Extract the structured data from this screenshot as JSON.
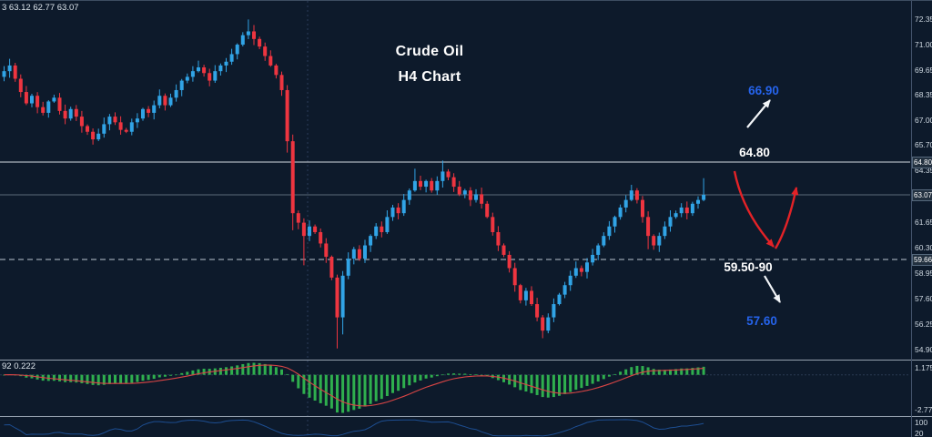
{
  "readouts": {
    "ohlc": "3 63.12 62.77 63.07",
    "macd_values": "92 0.222"
  },
  "annotations": {
    "title_line1": "Crude Oil",
    "title_line2": "H4 Chart",
    "target_up_label": "66.90",
    "resistance_label": "64.80",
    "support_zone_label": "59.50-90",
    "target_down_label": "57.60"
  },
  "axis": {
    "price_ticks": [
      {
        "label": "72.35",
        "price": 72.35
      },
      {
        "label": "71.00",
        "price": 71.0
      },
      {
        "label": "69.65",
        "price": 69.65
      },
      {
        "label": "68.35",
        "price": 68.35
      },
      {
        "label": "67.00",
        "price": 67.0
      },
      {
        "label": "65.70",
        "price": 65.7
      },
      {
        "label": "64.35",
        "price": 64.35
      },
      {
        "label": "61.65",
        "price": 61.65
      },
      {
        "label": "60.30",
        "price": 60.3
      },
      {
        "label": "58.95",
        "price": 58.95
      },
      {
        "label": "57.60",
        "price": 57.6
      },
      {
        "label": "56.25",
        "price": 56.25
      },
      {
        "label": "54.90",
        "price": 54.9
      }
    ],
    "badges": [
      {
        "label": "64.80",
        "price": 64.8
      },
      {
        "label": "63.07",
        "price": 63.07
      },
      {
        "label": "59.66",
        "price": 59.66
      }
    ]
  },
  "chart_data": {
    "type": "candlestick",
    "title": "Crude Oil H4 Chart",
    "instrument": "Crude Oil",
    "timeframe": "H4",
    "price_axis_range": [
      54.9,
      72.35
    ],
    "levels": {
      "resistance_line": 64.8,
      "current_price_line": 63.07,
      "support_dashed_line": 59.66,
      "support_zone_text": "59.50-90",
      "upside_target": 66.9,
      "downside_target": 57.6
    },
    "candles": {
      "first_open": 69.3,
      "closes": [
        69.6,
        69.9,
        69.2,
        68.5,
        67.9,
        68.3,
        67.7,
        67.4,
        68.0,
        68.2,
        67.5,
        67.1,
        67.6,
        67.2,
        66.7,
        66.4,
        66.0,
        66.3,
        66.8,
        67.2,
        66.9,
        66.5,
        66.4,
        66.9,
        67.1,
        67.6,
        67.4,
        67.8,
        68.3,
        67.8,
        68.2,
        68.6,
        69.1,
        69.3,
        69.6,
        69.8,
        69.5,
        69.1,
        69.6,
        69.9,
        70.1,
        70.5,
        71.0,
        71.5,
        71.7,
        71.3,
        70.9,
        70.4,
        69.9,
        69.4,
        68.6,
        65.9,
        62.1,
        61.6,
        60.9,
        61.4,
        61.1,
        60.5,
        59.8,
        58.7,
        56.6,
        58.8,
        59.7,
        60.2,
        59.7,
        60.4,
        60.9,
        61.4,
        61.1,
        61.9,
        62.4,
        62.1,
        62.8,
        63.3,
        63.8,
        63.5,
        63.8,
        63.3,
        63.8,
        64.3,
        64.0,
        63.5,
        63.1,
        63.3,
        62.8,
        63.1,
        62.6,
        61.9,
        61.1,
        60.4,
        59.9,
        59.2,
        58.3,
        57.5,
        58.0,
        57.3,
        56.6,
        55.9,
        56.6,
        57.3,
        57.8,
        58.3,
        58.8,
        59.2,
        59.0,
        59.5,
        59.9,
        60.4,
        60.9,
        61.4,
        61.9,
        62.4,
        62.8,
        63.3,
        62.8,
        61.9,
        60.9,
        60.4,
        60.9,
        61.4,
        61.9,
        62.1,
        62.4,
        62.1,
        62.6,
        62.8,
        63.07
      ],
      "wick_overrides": {
        "44": {
          "h": 72.33
        },
        "51": {
          "l": 65.3
        },
        "52": {
          "l": 61.2
        },
        "54": {
          "l": 59.35
        },
        "60": {
          "l": 54.96
        },
        "61": {
          "l": 55.7
        },
        "74": {
          "h": 64.45
        },
        "79": {
          "h": 64.88
        },
        "97": {
          "l": 55.5
        },
        "113": {
          "h": 63.6
        },
        "116": {
          "l": 60.2
        },
        "126": {
          "h": 63.95
        }
      }
    },
    "indicators": {
      "macd": {
        "visible_values": "92 0.222",
        "scale_max_label": "1.175",
        "scale_min_label": "-2.776"
      },
      "lower_panel": {
        "scale_labels": [
          "100",
          "20"
        ]
      }
    }
  },
  "colors": {
    "background": "#0d1a2b",
    "bull": "#31a4e6",
    "bear": "#ee3540",
    "panel_border": "#94a0ae",
    "axis_border": "#42526a",
    "vertical_separator": "#2c3c58",
    "line_resistance": "#d3dae1",
    "line_current": "#5c6a7a",
    "line_support": "#bcc6d0",
    "macd_bar": "#2faf4e",
    "macd_signal": "#d94545",
    "macd_zero": "#2a3a52",
    "panel3_line": "#1d4e92",
    "badge_bg": "#22303f",
    "badge_border": "#55687c",
    "blue_label": "#2563eb",
    "white_label": "#ffffff",
    "arrow_red": "#e32227",
    "arrow_white": "#f2f5f8"
  }
}
